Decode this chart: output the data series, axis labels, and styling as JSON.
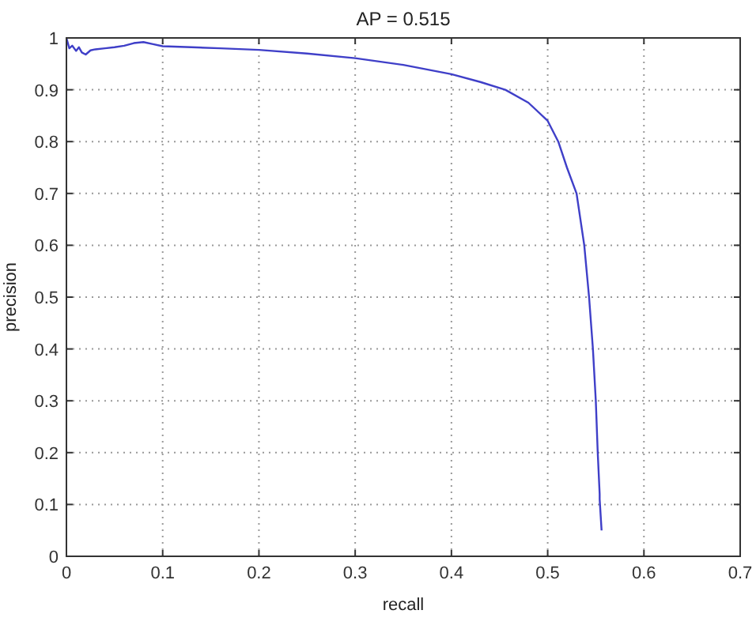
{
  "chart_data": {
    "type": "line",
    "title": "AP = 0.515",
    "xlabel": "recall",
    "ylabel": "precision",
    "xlim": [
      0,
      0.7
    ],
    "ylim": [
      0,
      1
    ],
    "xticks": [
      0,
      0.1,
      0.2,
      0.3,
      0.4,
      0.5,
      0.6,
      {
        "value": 0.7,
        "label": "0.7"
      }
    ],
    "yticks": [
      0,
      0.1,
      0.2,
      0.3,
      0.4,
      0.5,
      0.6,
      0.7,
      0.8,
      0.9,
      1
    ],
    "grid": true,
    "line_style": "solid",
    "marker": "none",
    "series": [
      {
        "color": "#3f3fc8",
        "x": [
          0,
          0.003,
          0.006,
          0.01,
          0.013,
          0.016,
          0.02,
          0.025,
          0.03,
          0.04,
          0.05,
          0.06,
          0.07,
          0.08,
          0.09,
          0.1,
          0.13,
          0.16,
          0.2,
          0.25,
          0.3,
          0.35,
          0.4,
          0.43,
          0.456,
          0.48,
          0.5,
          0.511,
          0.52,
          0.53,
          0.538,
          0.543,
          0.547,
          0.55,
          0.552,
          0.554,
          0.554,
          0.556
        ],
        "values": [
          1,
          0.98,
          0.985,
          0.975,
          0.982,
          0.972,
          0.968,
          0.976,
          0.978,
          0.98,
          0.982,
          0.985,
          0.99,
          0.992,
          0.988,
          0.984,
          0.982,
          0.98,
          0.977,
          0.97,
          0.961,
          0.948,
          0.93,
          0.915,
          0.9,
          0.875,
          0.84,
          0.8,
          0.75,
          0.7,
          0.6,
          0.5,
          0.4,
          0.3,
          0.2,
          0.12,
          0.11,
          0.05
        ]
      }
    ]
  }
}
